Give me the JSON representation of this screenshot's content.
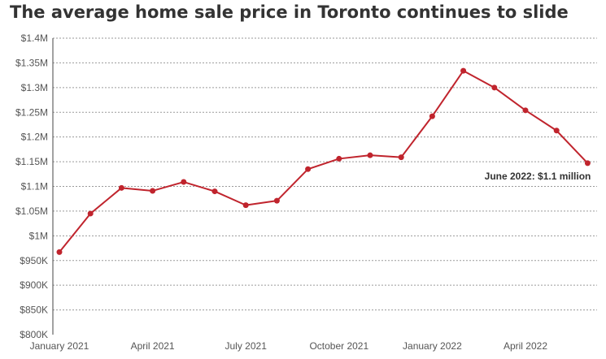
{
  "chart_data": {
    "type": "line",
    "title": "The average home sale price in Toronto continues to slide",
    "xlabel": "",
    "ylabel": "",
    "x": [
      "2021-01",
      "2021-02",
      "2021-03",
      "2021-04",
      "2021-05",
      "2021-06",
      "2021-07",
      "2021-08",
      "2021-09",
      "2021-10",
      "2021-11",
      "2021-12",
      "2022-01",
      "2022-02",
      "2022-03",
      "2022-04",
      "2022-05",
      "2022-06"
    ],
    "series": [
      {
        "values": [
          967000,
          1045000,
          1097000,
          1091000,
          1109000,
          1090000,
          1062000,
          1071000,
          1135000,
          1156000,
          1163000,
          1159000,
          1242000,
          1334000,
          1300000,
          1254000,
          1213000,
          1147000
        ],
        "color": "#c0242d"
      }
    ],
    "ylim": [
      800000,
      1400000
    ],
    "yticks": [
      800000,
      850000,
      900000,
      950000,
      1000000,
      1050000,
      1100000,
      1150000,
      1200000,
      1250000,
      1300000,
      1350000,
      1400000
    ],
    "ytick_labels": [
      "$800K",
      "$850K",
      "$900K",
      "$950K",
      "$1M",
      "$1.05M",
      "$1.1M",
      "$1.15M",
      "$1.2M",
      "$1.25M",
      "$1.3M",
      "$1.35M",
      "$1.4M"
    ],
    "xtick_labels": [
      {
        "x": "2021-01",
        "label": "January 2021"
      },
      {
        "x": "2021-04",
        "label": "April 2021"
      },
      {
        "x": "2021-07",
        "label": "July 2021"
      },
      {
        "x": "2021-10",
        "label": "October 2021"
      },
      {
        "x": "2022-01",
        "label": "January 2022"
      },
      {
        "x": "2022-04",
        "label": "April 2022"
      }
    ],
    "grid": true,
    "annotations": [
      {
        "x": "2022-06",
        "text": "June 2022: $1.1 million"
      }
    ]
  }
}
